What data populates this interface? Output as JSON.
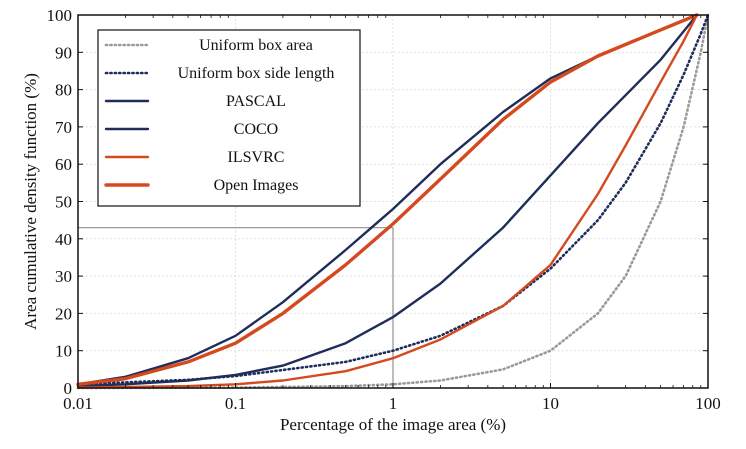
{
  "chart_data": {
    "type": "line",
    "xlabel": "Percentage of the image area (%)",
    "ylabel": "Area cumulative density function (%)",
    "x_scale": "log",
    "xlim": [
      0.01,
      100
    ],
    "ylim": [
      0,
      100
    ],
    "x_ticks": [
      {
        "value": 0.01,
        "label": "0.01"
      },
      {
        "value": 0.1,
        "label": "0.1"
      },
      {
        "value": 1,
        "label": "1"
      },
      {
        "value": 10,
        "label": "10"
      },
      {
        "value": 100,
        "label": "100"
      }
    ],
    "y_ticks": [
      0,
      10,
      20,
      30,
      40,
      50,
      60,
      70,
      80,
      90,
      100
    ],
    "grid": true,
    "legend_position": "top-left",
    "reference_lines": {
      "x": 1,
      "y": 43
    },
    "series": [
      {
        "name": "Uniform box area",
        "color": "#9a9a9a",
        "style": "dotted",
        "x": [
          0.01,
          0.1,
          0.5,
          1,
          2,
          5,
          10,
          20,
          30,
          50,
          70,
          90,
          100
        ],
        "y": [
          0,
          0.1,
          0.5,
          1,
          2,
          5,
          10,
          20,
          30,
          50,
          70,
          90,
          100
        ]
      },
      {
        "name": "Uniform box side length",
        "color": "#1f2d5a",
        "style": "dotted",
        "x": [
          0.01,
          0.05,
          0.1,
          0.5,
          1,
          2,
          5,
          10,
          20,
          30,
          50,
          70,
          90,
          100
        ],
        "y": [
          1,
          2.2,
          3.2,
          7,
          10,
          14,
          22,
          32,
          45,
          55,
          71,
          84,
          95,
          100
        ]
      },
      {
        "name": "PASCAL",
        "color": "#1f2d5a",
        "style": "solid",
        "x": [
          0.01,
          0.02,
          0.05,
          0.1,
          0.2,
          0.5,
          1,
          2,
          5,
          10,
          20,
          50,
          85
        ],
        "y": [
          1,
          3,
          8,
          14,
          23,
          37,
          48,
          60,
          74,
          83,
          89,
          96,
          100
        ]
      },
      {
        "name": "COCO",
        "color": "#1f2d5a",
        "style": "solid",
        "x": [
          0.01,
          0.02,
          0.05,
          0.1,
          0.2,
          0.5,
          1,
          2,
          5,
          10,
          20,
          50,
          85
        ],
        "y": [
          0.5,
          1,
          2,
          3.5,
          6,
          12,
          19,
          28,
          43,
          57,
          71,
          88,
          100
        ]
      },
      {
        "name": "ILSVRC",
        "color": "#d44a1e",
        "style": "solid",
        "x": [
          0.01,
          0.05,
          0.1,
          0.2,
          0.5,
          1,
          2,
          5,
          10,
          20,
          30,
          50,
          70,
          85
        ],
        "y": [
          0.1,
          0.5,
          1,
          2,
          4.5,
          8,
          13,
          22,
          33,
          52,
          65,
          82,
          93,
          100
        ]
      },
      {
        "name": "Open Images",
        "color": "#d44a1e",
        "style": "solid",
        "x": [
          0.01,
          0.02,
          0.05,
          0.1,
          0.2,
          0.5,
          1,
          2,
          5,
          10,
          20,
          50,
          85
        ],
        "y": [
          1,
          2.5,
          7,
          12,
          20,
          33,
          44,
          56,
          72,
          82,
          89,
          96,
          100
        ]
      }
    ]
  }
}
